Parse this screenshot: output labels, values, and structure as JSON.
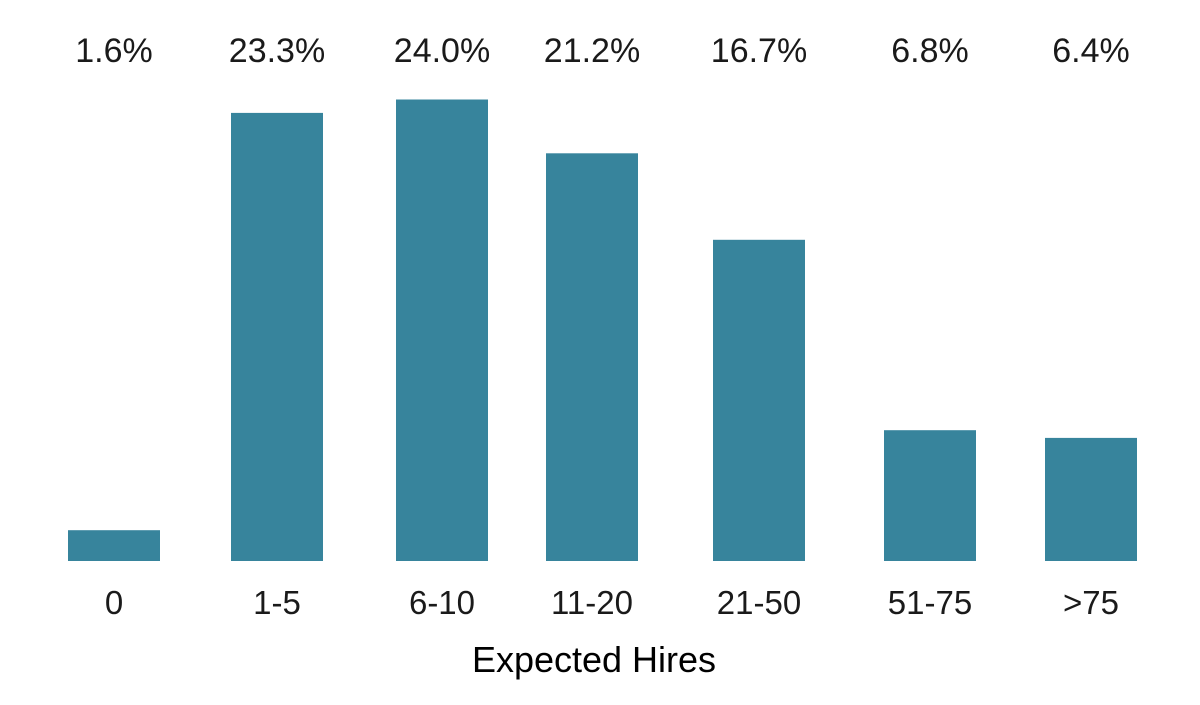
{
  "chart_data": {
    "type": "bar",
    "categories": [
      "0",
      "1-5",
      "6-10",
      "11-20",
      "21-50",
      "51-75",
      ">75"
    ],
    "values": [
      1.6,
      23.3,
      24.0,
      21.2,
      16.7,
      6.8,
      6.4
    ],
    "data_labels": [
      "1.6%",
      "23.3%",
      "24.0%",
      "21.2%",
      "16.7%",
      "6.8%",
      "6.4%"
    ],
    "title": "",
    "xlabel": "Expected Hires",
    "ylabel": "",
    "ylim": [
      0,
      24.7
    ],
    "grid": false,
    "legend": "none",
    "bar_color": "#37849c"
  }
}
